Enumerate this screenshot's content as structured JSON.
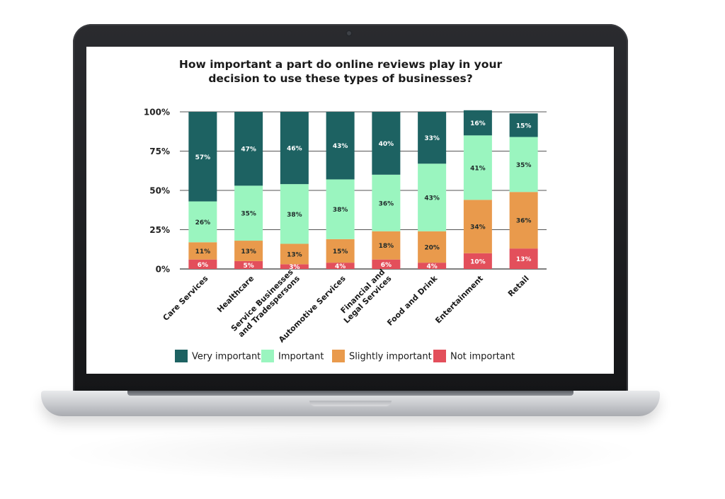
{
  "chart_data": {
    "type": "bar",
    "stacked": true,
    "title_lines": [
      "How important a part do online reviews play in your",
      "decision to use these types of businesses?"
    ],
    "categories": [
      [
        "Care Services"
      ],
      [
        "Healthcare"
      ],
      [
        "Service Businesses",
        "and Tradespersons"
      ],
      [
        "Automotive Services"
      ],
      [
        "Financial and",
        "Legal Services"
      ],
      [
        "Food and Drink"
      ],
      [
        "Entertainment"
      ],
      [
        "Retail"
      ]
    ],
    "series": [
      {
        "name": "Not important",
        "color": "#e34f5b",
        "label_color": "#ffffff",
        "values": [
          6,
          5,
          3,
          4,
          6,
          4,
          10,
          13
        ]
      },
      {
        "name": "Slightly important",
        "color": "#e99a4c",
        "label_color": "#1f2a2a",
        "values": [
          11,
          13,
          13,
          15,
          18,
          20,
          34,
          36
        ]
      },
      {
        "name": "Important",
        "color": "#9af5bf",
        "label_color": "#1f2a2a",
        "values": [
          26,
          35,
          38,
          38,
          36,
          43,
          41,
          35
        ]
      },
      {
        "name": "Very important",
        "color": "#1d6262",
        "label_color": "#ffffff",
        "values": [
          57,
          47,
          46,
          43,
          40,
          33,
          16,
          15
        ]
      }
    ],
    "legend_order": [
      "Very important",
      "Important",
      "Slightly important",
      "Not important"
    ],
    "y_ticks": [
      "100%",
      "75%",
      "50%",
      "25%",
      "0%"
    ],
    "y_tick_values": [
      100,
      75,
      50,
      25,
      0
    ],
    "ylim": [
      0,
      100
    ],
    "xlabel": "",
    "ylabel": "",
    "grid": true,
    "legend_position": "bottom"
  }
}
